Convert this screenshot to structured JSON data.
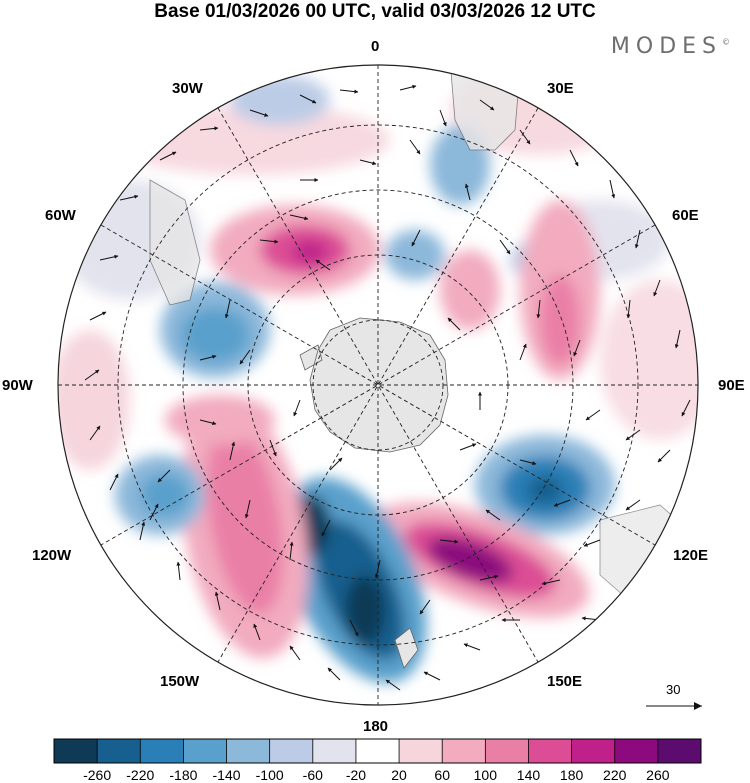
{
  "title": "Base 01/03/2026 00 UTC, valid 03/03/2026 12 UTC",
  "brand": "MODES",
  "brand_mark": "©",
  "longitude_labels": {
    "top": "0",
    "e30": "30E",
    "e60": "60E",
    "e90": "90E",
    "e120": "120E",
    "e150": "150E",
    "bottom": "180",
    "w150": "150W",
    "w120": "120W",
    "w90": "90W",
    "w60": "60W",
    "w30": "30W"
  },
  "reference_vector": {
    "value": "30",
    "icon": "arrow-right-icon"
  },
  "colorbar": {
    "ticks": [
      "-260",
      "-220",
      "-180",
      "-140",
      "-100",
      "-60",
      "-20",
      "20",
      "60",
      "100",
      "140",
      "180",
      "220",
      "260"
    ],
    "colors": [
      "#0f3a56",
      "#165f8e",
      "#2a7fb6",
      "#5aa0cc",
      "#8cb8da",
      "#bcccE6",
      "#e3e3ee",
      "#ffffff",
      "#f6d5dd",
      "#f2abbf",
      "#ea7fa6",
      "#dc4d95",
      "#bf208a",
      "#8c0a7e",
      "#5b0c6e"
    ]
  },
  "map_colors": {
    "land": "#e6e6e6",
    "coast": "#666666",
    "grid": "#222222",
    "vector": "#111111"
  }
}
